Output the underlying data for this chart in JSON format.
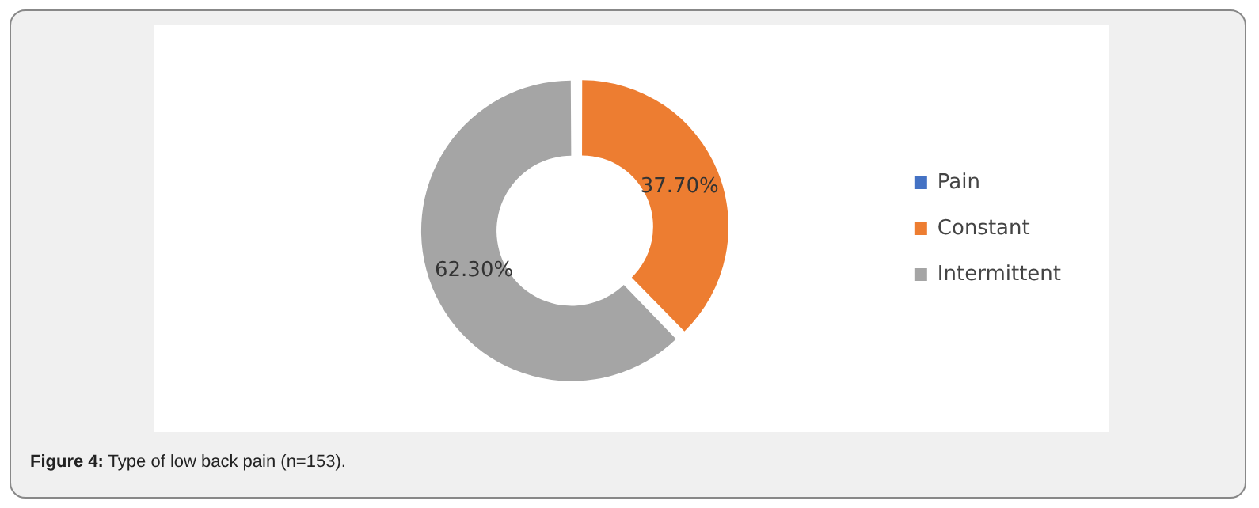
{
  "chart_data": {
    "type": "donut",
    "categories": [
      "Pain",
      "Constant",
      "Intermittent"
    ],
    "values": [
      0,
      37.7,
      62.3
    ],
    "colors": [
      "#4472c4",
      "#ed7d31",
      "#a5a5a5"
    ],
    "value_labels": [
      null,
      "37.70%",
      "62.30%"
    ],
    "legend": "right",
    "annotations": [
      "Figure 4: Type of low back pain (n=153)."
    ]
  }
}
